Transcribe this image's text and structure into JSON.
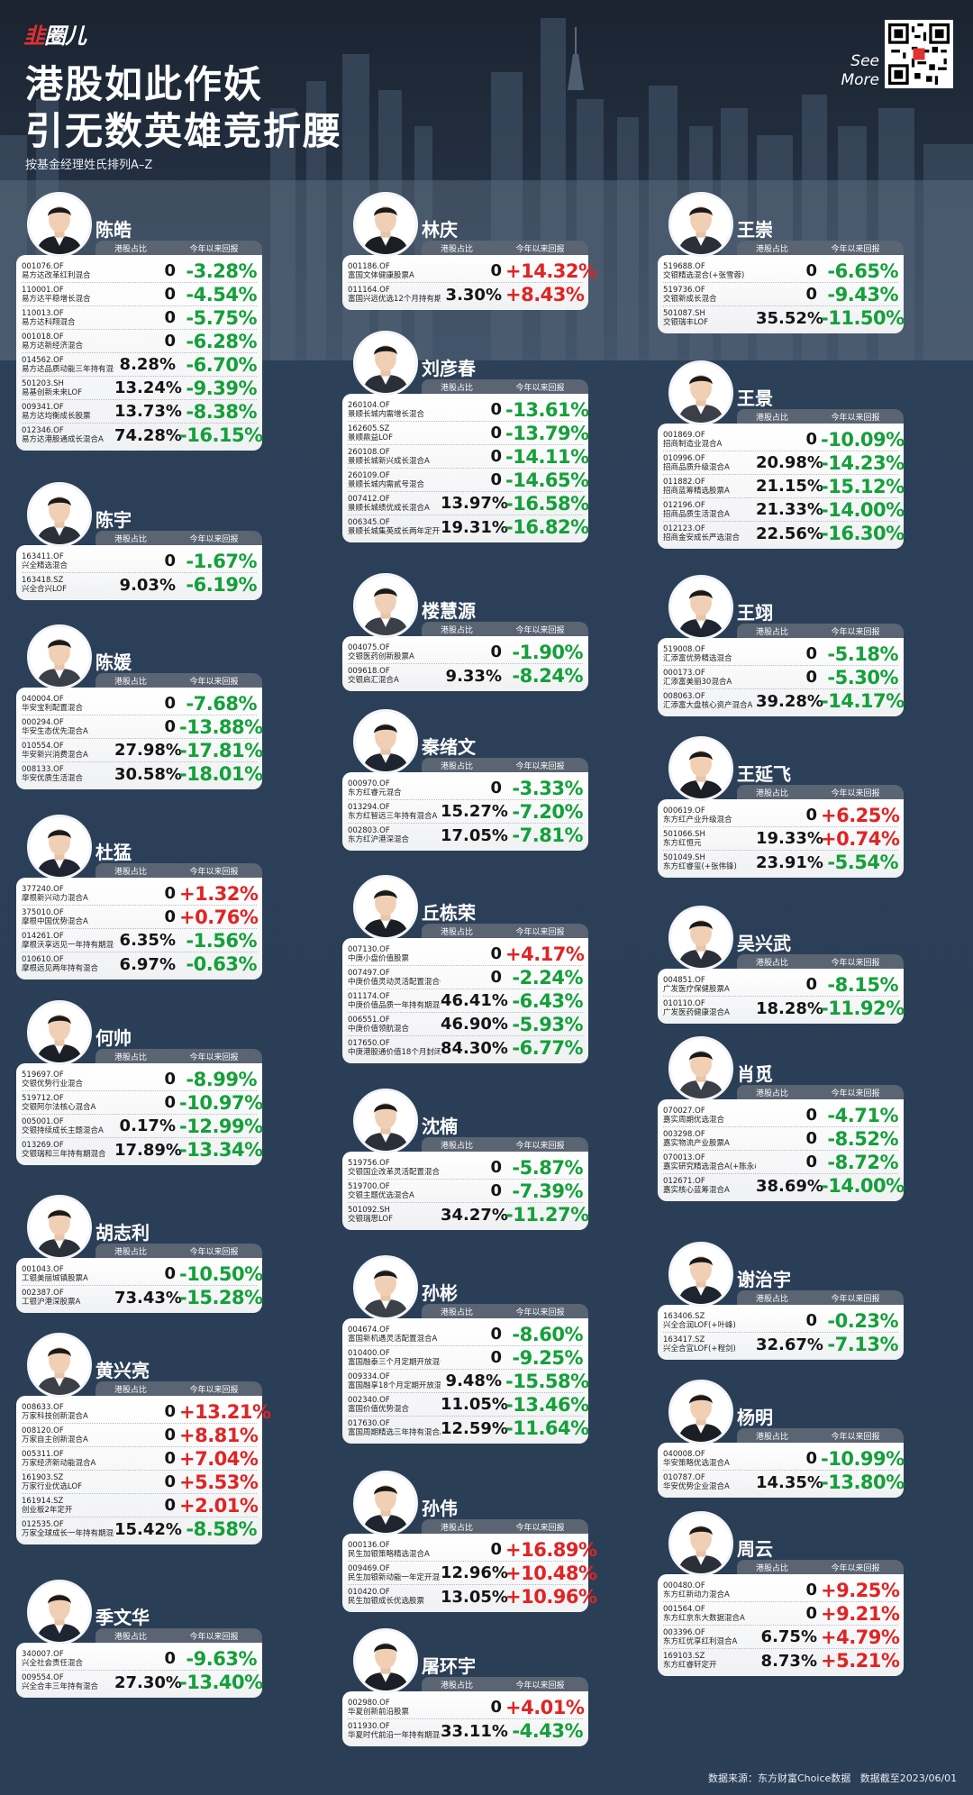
{
  "brand": {
    "logo_a": "韭",
    "logo_b": "圈儿"
  },
  "title_line1": "港股如此作妖",
  "title_line2": "引无数英雄竞折腰",
  "subtitle": "按基金经理姓氏排列A–Z",
  "see_more": "See More",
  "headers": {
    "hk": "港股占比",
    "ret": "今年以来回报"
  },
  "footer": {
    "source": "数据来源：东方财富Choice数据",
    "date": "数据截至2023/06/01"
  },
  "colors": {
    "positive": "#e02424",
    "negative": "#14a03a",
    "header": "#5a6472"
  },
  "managers": [
    {
      "name": "陈皓",
      "funds": [
        {
          "code": "001076.OF",
          "fund": "易方达改革红利混合",
          "hk": "0",
          "ret": "-3.28%"
        },
        {
          "code": "110001.OF",
          "fund": "易方达平稳增长混合",
          "hk": "0",
          "ret": "-4.54%"
        },
        {
          "code": "110013.OF",
          "fund": "易方达科翔混合",
          "hk": "0",
          "ret": "-5.75%"
        },
        {
          "code": "001018.OF",
          "fund": "易方达新经济混合",
          "hk": "0",
          "ret": "-6.28%"
        },
        {
          "code": "014562.OF",
          "fund": "易方达品质动能三年持有混合A",
          "hk": "8.28%",
          "ret": "-6.70%"
        },
        {
          "code": "501203.SH",
          "fund": "易基创新未来LOF",
          "hk": "13.24%",
          "ret": "-9.39%"
        },
        {
          "code": "009341.OF",
          "fund": "易方达均衡成长股票",
          "hk": "13.73%",
          "ret": "-8.38%"
        },
        {
          "code": "012346.OF",
          "fund": "易方达港股通成长混合A",
          "hk": "74.28%",
          "ret": "-16.15%"
        }
      ]
    },
    {
      "name": "陈宇",
      "funds": [
        {
          "code": "163411.OF",
          "fund": "兴全精选混合",
          "hk": "0",
          "ret": "-1.67%"
        },
        {
          "code": "163418.SZ",
          "fund": "兴全合兴LOF",
          "hk": "9.03%",
          "ret": "-6.19%"
        }
      ]
    },
    {
      "name": "陈媛",
      "funds": [
        {
          "code": "040004.OF",
          "fund": "华安宝利配置混合",
          "hk": "0",
          "ret": "-7.68%"
        },
        {
          "code": "000294.OF",
          "fund": "华安生态优先混合A",
          "hk": "0",
          "ret": "-13.88%"
        },
        {
          "code": "010554.OF",
          "fund": "华安新兴消费混合A",
          "hk": "27.98%",
          "ret": "-17.81%"
        },
        {
          "code": "008133.OF",
          "fund": "华安优质生活混合",
          "hk": "30.58%",
          "ret": "-18.01%"
        }
      ]
    },
    {
      "name": "杜猛",
      "funds": [
        {
          "code": "377240.OF",
          "fund": "摩根新兴动力混合A",
          "hk": "0",
          "ret": "+1.32%"
        },
        {
          "code": "375010.OF",
          "fund": "摩根中国优势混合A",
          "hk": "0",
          "ret": "+0.76%"
        },
        {
          "code": "014261.OF",
          "fund": "摩根沃享远见一年持有期混合A",
          "hk": "6.35%",
          "ret": "-1.56%"
        },
        {
          "code": "010610.OF",
          "fund": "摩根远见两年持有混合",
          "hk": "6.97%",
          "ret": "-0.63%"
        }
      ]
    },
    {
      "name": "何帅",
      "funds": [
        {
          "code": "519697.OF",
          "fund": "交银优势行业混合",
          "hk": "0",
          "ret": "-8.99%"
        },
        {
          "code": "519712.OF",
          "fund": "交银阿尔法核心混合A",
          "hk": "0",
          "ret": "-10.97%"
        },
        {
          "code": "005001.OF",
          "fund": "交银持续成长主题混合A",
          "hk": "0.17%",
          "ret": "-12.99%"
        },
        {
          "code": "013269.OF",
          "fund": "交银瑞和三年持有期混合",
          "hk": "17.89%",
          "ret": "-13.34%"
        }
      ]
    },
    {
      "name": "胡志利",
      "funds": [
        {
          "code": "001043.OF",
          "fund": "工银美丽城镇股票A",
          "hk": "0",
          "ret": "-10.50%"
        },
        {
          "code": "002387.OF",
          "fund": "工银沪港深股票A",
          "hk": "73.43%",
          "ret": "-15.28%"
        }
      ]
    },
    {
      "name": "黄兴亮",
      "funds": [
        {
          "code": "008633.OF",
          "fund": "万家科技创新混合A",
          "hk": "0",
          "ret": "+13.21%"
        },
        {
          "code": "008120.OF",
          "fund": "万家自主创新混合A",
          "hk": "0",
          "ret": "+8.81%"
        },
        {
          "code": "005311.OF",
          "fund": "万家经济新动能混合A",
          "hk": "0",
          "ret": "+7.04%"
        },
        {
          "code": "161903.SZ",
          "fund": "万家行业优选LOF",
          "hk": "0",
          "ret": "+5.53%"
        },
        {
          "code": "161914.SZ",
          "fund": "创业板2年定开",
          "hk": "0",
          "ret": "+2.01%"
        },
        {
          "code": "012535.OF",
          "fund": "万家全球成长一年持有期混合(QDII)A",
          "hk": "15.42%",
          "ret": "-8.58%"
        }
      ]
    },
    {
      "name": "季文华",
      "funds": [
        {
          "code": "340007.OF",
          "fund": "兴全社会责任混合",
          "hk": "0",
          "ret": "-9.63%"
        },
        {
          "code": "009554.OF",
          "fund": "兴全合丰三年持有混合",
          "hk": "27.30%",
          "ret": "-13.40%"
        }
      ]
    },
    {
      "name": "林庆",
      "funds": [
        {
          "code": "001186.OF",
          "fund": "富国文体健康股票A",
          "hk": "0",
          "ret": "+14.32%"
        },
        {
          "code": "011164.OF",
          "fund": "富国兴远优选12个月持有期混合A",
          "hk": "3.30%",
          "ret": "+8.43%"
        }
      ]
    },
    {
      "name": "刘彦春",
      "funds": [
        {
          "code": "260104.OF",
          "fund": "景顺长城内需增长混合",
          "hk": "0",
          "ret": "-13.61%"
        },
        {
          "code": "162605.SZ",
          "fund": "景顺鼎益LOF",
          "hk": "0",
          "ret": "-13.79%"
        },
        {
          "code": "260108.OF",
          "fund": "景顺长城新兴成长混合A",
          "hk": "0",
          "ret": "-14.11%"
        },
        {
          "code": "260109.OF",
          "fund": "景顺长城内需贰号混合",
          "hk": "0",
          "ret": "-14.65%"
        },
        {
          "code": "007412.OF",
          "fund": "景顺长城绩优成长混合A",
          "hk": "13.97%",
          "ret": "-16.58%"
        },
        {
          "code": "006345.OF",
          "fund": "景顺长城集英成长两年定开混合",
          "hk": "19.31%",
          "ret": "-16.82%"
        }
      ]
    },
    {
      "name": "楼慧源",
      "funds": [
        {
          "code": "004075.OF",
          "fund": "交银医药创新股票A",
          "hk": "0",
          "ret": "-1.90%"
        },
        {
          "code": "009618.OF",
          "fund": "交银启汇混合A",
          "hk": "9.33%",
          "ret": "-8.24%"
        }
      ]
    },
    {
      "name": "秦绪文",
      "funds": [
        {
          "code": "000970.OF",
          "fund": "东方红睿元混合",
          "hk": "0",
          "ret": "-3.33%"
        },
        {
          "code": "013294.OF",
          "fund": "东方红智远三年持有混合A",
          "hk": "15.27%",
          "ret": "-7.20%"
        },
        {
          "code": "002803.OF",
          "fund": "东方红沪港深混合",
          "hk": "17.05%",
          "ret": "-7.81%"
        }
      ]
    },
    {
      "name": "丘栋荣",
      "funds": [
        {
          "code": "007130.OF",
          "fund": "中庚小盘价值股票",
          "hk": "0",
          "ret": "+4.17%"
        },
        {
          "code": "007497.OF",
          "fund": "中庚价值灵动灵活配置混合(+吴承根)",
          "hk": "0",
          "ret": "-2.24%"
        },
        {
          "code": "011174.OF",
          "fund": "中庚价值品质一年持有期混合",
          "hk": "46.41%",
          "ret": "-6.43%"
        },
        {
          "code": "006551.OF",
          "fund": "中庚价值领航混合",
          "hk": "46.90%",
          "ret": "-5.93%"
        },
        {
          "code": "017650.OF",
          "fund": "中庚港股通价值18个月封闭股票",
          "hk": "84.30%",
          "ret": "-6.77%"
        }
      ]
    },
    {
      "name": "沈楠",
      "funds": [
        {
          "code": "519756.OF",
          "fund": "交银国企改革灵活配置混合",
          "hk": "0",
          "ret": "-5.87%"
        },
        {
          "code": "519700.OF",
          "fund": "交银主题优选混合A",
          "hk": "0",
          "ret": "-7.39%"
        },
        {
          "code": "501092.SH",
          "fund": "交银瑞思LOF",
          "hk": "34.27%",
          "ret": "-11.27%"
        }
      ]
    },
    {
      "name": "孙彬",
      "funds": [
        {
          "code": "004674.OF",
          "fund": "富国新机遇灵活配置混合A",
          "hk": "0",
          "ret": "-8.60%"
        },
        {
          "code": "010400.OF",
          "fund": "富国融泰三个月定期开放混合发起式",
          "hk": "0",
          "ret": "-9.25%"
        },
        {
          "code": "009334.OF",
          "fund": "富国融享18个月定期开放混合A",
          "hk": "9.48%",
          "ret": "-15.58%"
        },
        {
          "code": "002340.OF",
          "fund": "富国价值优势混合",
          "hk": "11.05%",
          "ret": "-13.46%"
        },
        {
          "code": "017630.OF",
          "fund": "富国周期精选三年持有混合A",
          "hk": "12.59%",
          "ret": "-11.64%"
        }
      ]
    },
    {
      "name": "孙伟",
      "funds": [
        {
          "code": "000136.OF",
          "fund": "民生加银策略精选混合A",
          "hk": "0",
          "ret": "+16.89%"
        },
        {
          "code": "009469.OF",
          "fund": "民生加银新动能一年定开混合",
          "hk": "12.96%",
          "ret": "+10.48%"
        },
        {
          "code": "010420.OF",
          "fund": "民生加银成长优选股票",
          "hk": "13.05%",
          "ret": "+10.96%"
        }
      ]
    },
    {
      "name": "屠环宇",
      "funds": [
        {
          "code": "002980.OF",
          "fund": "华夏创新前沿股票",
          "hk": "0",
          "ret": "+4.01%"
        },
        {
          "code": "011930.OF",
          "fund": "华夏时代前沿一年持有期混合A",
          "hk": "33.11%",
          "ret": "-4.43%"
        }
      ]
    },
    {
      "name": "王崇",
      "funds": [
        {
          "code": "519688.OF",
          "fund": "交银精选混合(+张雪蓉)",
          "hk": "0",
          "ret": "-6.65%"
        },
        {
          "code": "519736.OF",
          "fund": "交银新成长混合",
          "hk": "0",
          "ret": "-9.43%"
        },
        {
          "code": "501087.SH",
          "fund": "交银瑞丰LOF",
          "hk": "35.52%",
          "ret": "-11.50%"
        }
      ]
    },
    {
      "name": "王景",
      "funds": [
        {
          "code": "001869.OF",
          "fund": "招商制造业混合A",
          "hk": "0",
          "ret": "-10.09%"
        },
        {
          "code": "010996.OF",
          "fund": "招商品质升级混合A",
          "hk": "20.98%",
          "ret": "-14.23%"
        },
        {
          "code": "011882.OF",
          "fund": "招商蓝筹精选股票A",
          "hk": "21.15%",
          "ret": "-15.12%"
        },
        {
          "code": "012196.OF",
          "fund": "招商品质生活混合A",
          "hk": "21.33%",
          "ret": "-14.00%"
        },
        {
          "code": "012123.OF",
          "fund": "招商金安成长严选混合",
          "hk": "22.56%",
          "ret": "-16.30%"
        }
      ]
    },
    {
      "name": "王翊",
      "funds": [
        {
          "code": "519008.OF",
          "fund": "汇添富优势精选混合",
          "hk": "0",
          "ret": "-5.18%"
        },
        {
          "code": "000173.OF",
          "fund": "汇添富美丽30混合A",
          "hk": "0",
          "ret": "-5.30%"
        },
        {
          "code": "008063.OF",
          "fund": "汇添富大盘核心资产混合A",
          "hk": "39.28%",
          "ret": "-14.17%"
        }
      ]
    },
    {
      "name": "王延飞",
      "funds": [
        {
          "code": "000619.OF",
          "fund": "东方红产业升级混合",
          "hk": "0",
          "ret": "+6.25%"
        },
        {
          "code": "501066.SH",
          "fund": "东方红恒元",
          "hk": "19.33%",
          "ret": "+0.74%"
        },
        {
          "code": "501049.SH",
          "fund": "东方红睿玺(+张伟锋)",
          "hk": "23.91%",
          "ret": "-5.54%"
        }
      ]
    },
    {
      "name": "吴兴武",
      "funds": [
        {
          "code": "004851.OF",
          "fund": "广发医疗保健股票A",
          "hk": "0",
          "ret": "-8.15%"
        },
        {
          "code": "010110.OF",
          "fund": "广发医药健康混合A",
          "hk": "18.28%",
          "ret": "-11.92%"
        }
      ]
    },
    {
      "name": "肖觅",
      "funds": [
        {
          "code": "070027.OF",
          "fund": "嘉实周期优选混合",
          "hk": "0",
          "ret": "-4.71%"
        },
        {
          "code": "003298.OF",
          "fund": "嘉实物流产业股票A",
          "hk": "0",
          "ret": "-8.52%"
        },
        {
          "code": "070013.OF",
          "fund": "嘉实研究精选混合A(+陈永&刘保豪)",
          "hk": "0",
          "ret": "-8.72%"
        },
        {
          "code": "012671.OF",
          "fund": "嘉实核心蓝筹混合A",
          "hk": "38.69%",
          "ret": "-14.00%"
        }
      ]
    },
    {
      "name": "谢治宇",
      "funds": [
        {
          "code": "163406.SZ",
          "fund": "兴全合润LOF(+叶峰)",
          "hk": "0",
          "ret": "-0.23%"
        },
        {
          "code": "163417.SZ",
          "fund": "兴全合宜LOF(+程剑)",
          "hk": "32.67%",
          "ret": "-7.13%"
        }
      ]
    },
    {
      "name": "杨明",
      "funds": [
        {
          "code": "040008.OF",
          "fund": "华安策略优选混合A",
          "hk": "0",
          "ret": "-10.99%"
        },
        {
          "code": "010787.OF",
          "fund": "华安优势企业混合A",
          "hk": "14.35%",
          "ret": "-13.80%"
        }
      ]
    },
    {
      "name": "周云",
      "funds": [
        {
          "code": "000480.OF",
          "fund": "东方红新动力混合A",
          "hk": "0",
          "ret": "+9.25%"
        },
        {
          "code": "001564.OF",
          "fund": "东方红京东大数据混合A",
          "hk": "0",
          "ret": "+9.21%"
        },
        {
          "code": "003396.OF",
          "fund": "东方红优享红利混合A",
          "hk": "6.75%",
          "ret": "+4.79%"
        },
        {
          "code": "169103.SZ",
          "fund": "东方红睿轩定开",
          "hk": "8.73%",
          "ret": "+5.21%"
        }
      ]
    }
  ]
}
